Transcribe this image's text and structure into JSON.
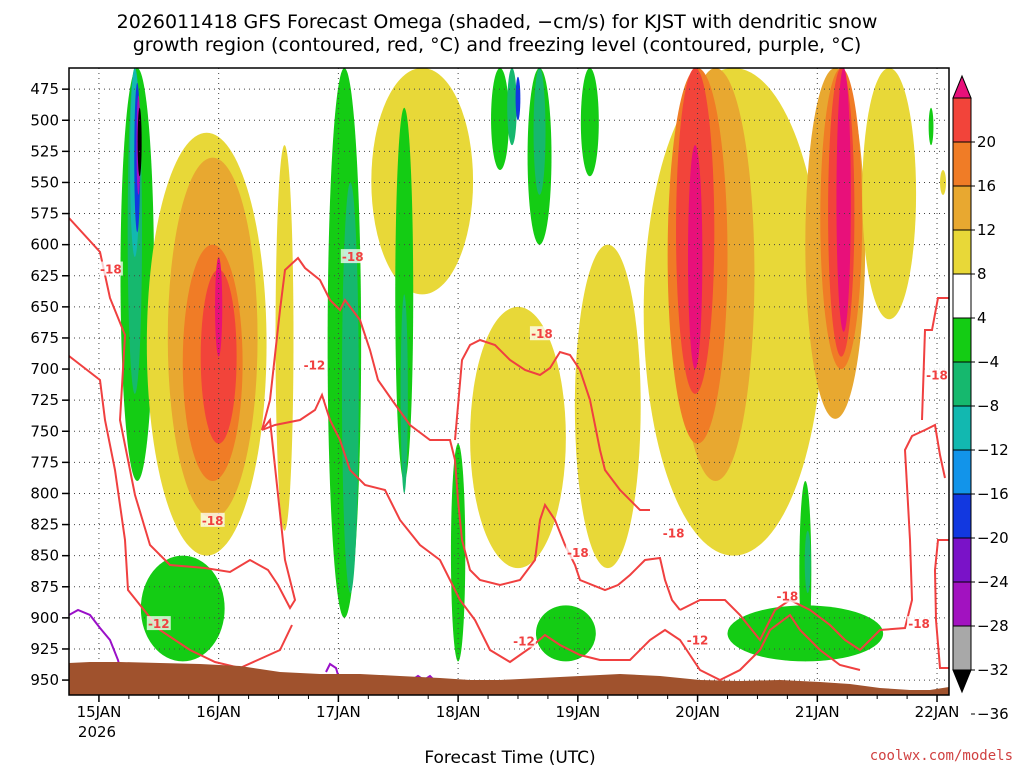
{
  "chart_data": {
    "type": "heatmap",
    "title_lines": [
      "2026011418 GFS Forecast Omega (shaded, −cm/s) for KJST with dendritic snow",
      "growth region (contoured, red, °C) and freezing level (contoured, purple, °C)"
    ],
    "xlabel": "Forecast Time (UTC)",
    "credit": "coolwx.com/models",
    "x_ticks": [
      {
        "label": "15JAN",
        "day": 0
      },
      {
        "label": "16JAN",
        "day": 1
      },
      {
        "label": "17JAN",
        "day": 2
      },
      {
        "label": "18JAN",
        "day": 3
      },
      {
        "label": "19JAN",
        "day": 4
      },
      {
        "label": "20JAN",
        "day": 5
      },
      {
        "label": "21JAN",
        "day": 6
      },
      {
        "label": "22JAN",
        "day": 7
      }
    ],
    "x_year_label": "2026",
    "x_range_days": [
      -0.25,
      7.1
    ],
    "y_axis": {
      "reversed": true,
      "range_hpa": [
        458,
        962
      ],
      "ticks": [
        475,
        500,
        525,
        550,
        575,
        600,
        625,
        650,
        675,
        700,
        725,
        750,
        775,
        800,
        825,
        850,
        875,
        900,
        925,
        950
      ]
    },
    "grid": true,
    "colorbar": {
      "tick_labels": [
        "20",
        "16",
        "12",
        "8",
        "4",
        "−4",
        "−8",
        "−12",
        "−16",
        "−20",
        "−24",
        "−28",
        "−32",
        "−36"
      ],
      "bins": [
        {
          "from": 20,
          "to": 24,
          "color": "#e8107a",
          "end": "arrow-top"
        },
        {
          "from": 16,
          "to": 20,
          "color": "#f2443a"
        },
        {
          "from": 12,
          "to": 16,
          "color": "#f07c26"
        },
        {
          "from": 8,
          "to": 12,
          "color": "#e8a830"
        },
        {
          "from": 4,
          "to": 8,
          "color": "#e8d838"
        },
        {
          "from": -4,
          "to": 4,
          "color": "#ffffff"
        },
        {
          "from": -8,
          "to": -4,
          "color": "#14cc14"
        },
        {
          "from": -12,
          "to": -8,
          "color": "#16b86e"
        },
        {
          "from": -16,
          "to": -12,
          "color": "#12b8b0"
        },
        {
          "from": -20,
          "to": -16,
          "color": "#1294ea"
        },
        {
          "from": -24,
          "to": -20,
          "color": "#1238e0"
        },
        {
          "from": -28,
          "to": -24,
          "color": "#7a12c8"
        },
        {
          "from": -32,
          "to": -28,
          "color": "#a212c0"
        },
        {
          "from": -36,
          "to": -32,
          "color": "#a8a8a8"
        },
        {
          "from": -40,
          "to": -36,
          "color": "#000000",
          "end": "arrow-bottom"
        }
      ]
    },
    "omega_features": [
      {
        "value": -8,
        "day": 0.32,
        "width": 0.28,
        "p_top": 458,
        "p_bot": 790
      },
      {
        "value": -12,
        "day": 0.3,
        "width": 0.12,
        "p_top": 458,
        "p_bot": 720
      },
      {
        "value": -16,
        "day": 0.3,
        "width": 0.08,
        "p_top": 458,
        "p_bot": 610
      },
      {
        "value": -24,
        "day": 0.32,
        "width": 0.05,
        "p_top": 470,
        "p_bot": 590
      },
      {
        "value": -32,
        "day": 0.33,
        "width": 0.03,
        "p_top": 480,
        "p_bot": 560
      },
      {
        "value": -40,
        "day": 0.34,
        "width": 0.015,
        "p_top": 490,
        "p_bot": 545
      },
      {
        "value": 6,
        "day": 0.9,
        "width": 1.0,
        "p_top": 510,
        "p_bot": 850
      },
      {
        "value": 10,
        "day": 0.95,
        "width": 0.75,
        "p_top": 530,
        "p_bot": 820
      },
      {
        "value": 14,
        "day": 0.95,
        "width": 0.5,
        "p_top": 600,
        "p_bot": 790
      },
      {
        "value": 18,
        "day": 1.0,
        "width": 0.3,
        "p_top": 620,
        "p_bot": 760
      },
      {
        "value": 22,
        "day": 1.0,
        "width": 0.06,
        "p_top": 610,
        "p_bot": 690
      },
      {
        "value": -6,
        "day": 0.7,
        "width": 0.7,
        "p_top": 850,
        "p_bot": 935
      },
      {
        "value": 6,
        "day": 1.55,
        "width": 0.15,
        "p_top": 520,
        "p_bot": 830
      },
      {
        "value": -6,
        "day": 2.05,
        "width": 0.28,
        "p_top": 458,
        "p_bot": 900
      },
      {
        "value": -10,
        "day": 2.1,
        "width": 0.14,
        "p_top": 550,
        "p_bot": 880
      },
      {
        "value": 6,
        "day": 2.7,
        "width": 0.85,
        "p_top": 458,
        "p_bot": 640
      },
      {
        "value": -6,
        "day": 2.55,
        "width": 0.15,
        "p_top": 490,
        "p_bot": 790
      },
      {
        "value": -10,
        "day": 2.55,
        "width": 0.06,
        "p_top": 640,
        "p_bot": 800
      },
      {
        "value": -6,
        "day": 3.0,
        "width": 0.12,
        "p_top": 760,
        "p_bot": 935
      },
      {
        "value": 6,
        "day": 3.5,
        "width": 0.8,
        "p_top": 650,
        "p_bot": 860
      },
      {
        "value": -6,
        "day": 3.35,
        "width": 0.15,
        "p_top": 458,
        "p_bot": 540
      },
      {
        "value": -12,
        "day": 3.45,
        "width": 0.08,
        "p_top": 458,
        "p_bot": 520
      },
      {
        "value": -22,
        "day": 3.5,
        "width": 0.04,
        "p_top": 465,
        "p_bot": 500
      },
      {
        "value": -6,
        "day": 3.68,
        "width": 0.2,
        "p_top": 458,
        "p_bot": 600
      },
      {
        "value": -10,
        "day": 3.68,
        "width": 0.1,
        "p_top": 458,
        "p_bot": 560
      },
      {
        "value": 6,
        "day": 4.25,
        "width": 0.55,
        "p_top": 600,
        "p_bot": 860
      },
      {
        "value": -6,
        "day": 4.1,
        "width": 0.15,
        "p_top": 458,
        "p_bot": 545
      },
      {
        "value": -6,
        "day": 3.9,
        "width": 0.5,
        "p_top": 890,
        "p_bot": 935
      },
      {
        "value": 6,
        "day": 5.3,
        "width": 1.5,
        "p_top": 458,
        "p_bot": 850
      },
      {
        "value": 10,
        "day": 5.15,
        "width": 0.65,
        "p_top": 458,
        "p_bot": 790
      },
      {
        "value": 14,
        "day": 5.0,
        "width": 0.5,
        "p_top": 458,
        "p_bot": 760
      },
      {
        "value": 18,
        "day": 4.98,
        "width": 0.32,
        "p_top": 458,
        "p_bot": 720
      },
      {
        "value": 22,
        "day": 4.98,
        "width": 0.12,
        "p_top": 520,
        "p_bot": 700
      },
      {
        "value": 10,
        "day": 6.15,
        "width": 0.5,
        "p_top": 458,
        "p_bot": 740
      },
      {
        "value": 14,
        "day": 6.2,
        "width": 0.35,
        "p_top": 458,
        "p_bot": 700
      },
      {
        "value": 18,
        "day": 6.2,
        "width": 0.22,
        "p_top": 458,
        "p_bot": 690
      },
      {
        "value": 22,
        "day": 6.22,
        "width": 0.12,
        "p_top": 458,
        "p_bot": 670
      },
      {
        "value": 6,
        "day": 6.6,
        "width": 0.45,
        "p_top": 458,
        "p_bot": 660
      },
      {
        "value": -6,
        "day": 5.9,
        "width": 1.3,
        "p_top": 890,
        "p_bot": 935
      },
      {
        "value": -6,
        "day": 5.9,
        "width": 0.1,
        "p_top": 790,
        "p_bot": 935
      },
      {
        "value": -10,
        "day": 5.92,
        "width": 0.05,
        "p_top": 830,
        "p_bot": 880
      },
      {
        "value": -6,
        "day": 6.95,
        "width": 0.04,
        "p_top": 490,
        "p_bot": 520
      },
      {
        "value": 6,
        "day": 7.05,
        "width": 0.05,
        "p_top": 540,
        "p_bot": 560
      }
    ],
    "dgz_contour_labels": [
      {
        "text": "-18",
        "day": 0.1,
        "p": 620
      },
      {
        "text": "-18",
        "day": 0.95,
        "p": 822
      },
      {
        "text": "-12",
        "day": 0.5,
        "p": 905
      },
      {
        "text": "-12",
        "day": 1.8,
        "p": 697
      },
      {
        "text": "-18",
        "day": 2.12,
        "p": 610
      },
      {
        "text": "-18",
        "day": 3.7,
        "p": 672
      },
      {
        "text": "-18",
        "day": 4.0,
        "p": 848
      },
      {
        "text": "-12",
        "day": 3.55,
        "p": 919
      },
      {
        "text": "-18",
        "day": 4.8,
        "p": 832
      },
      {
        "text": "-12",
        "day": 5.0,
        "p": 918
      },
      {
        "text": "-18",
        "day": 5.75,
        "p": 883
      },
      {
        "text": "-18",
        "day": 6.85,
        "p": 905
      },
      {
        "text": "-18",
        "day": 7.0,
        "p": 705
      }
    ]
  }
}
